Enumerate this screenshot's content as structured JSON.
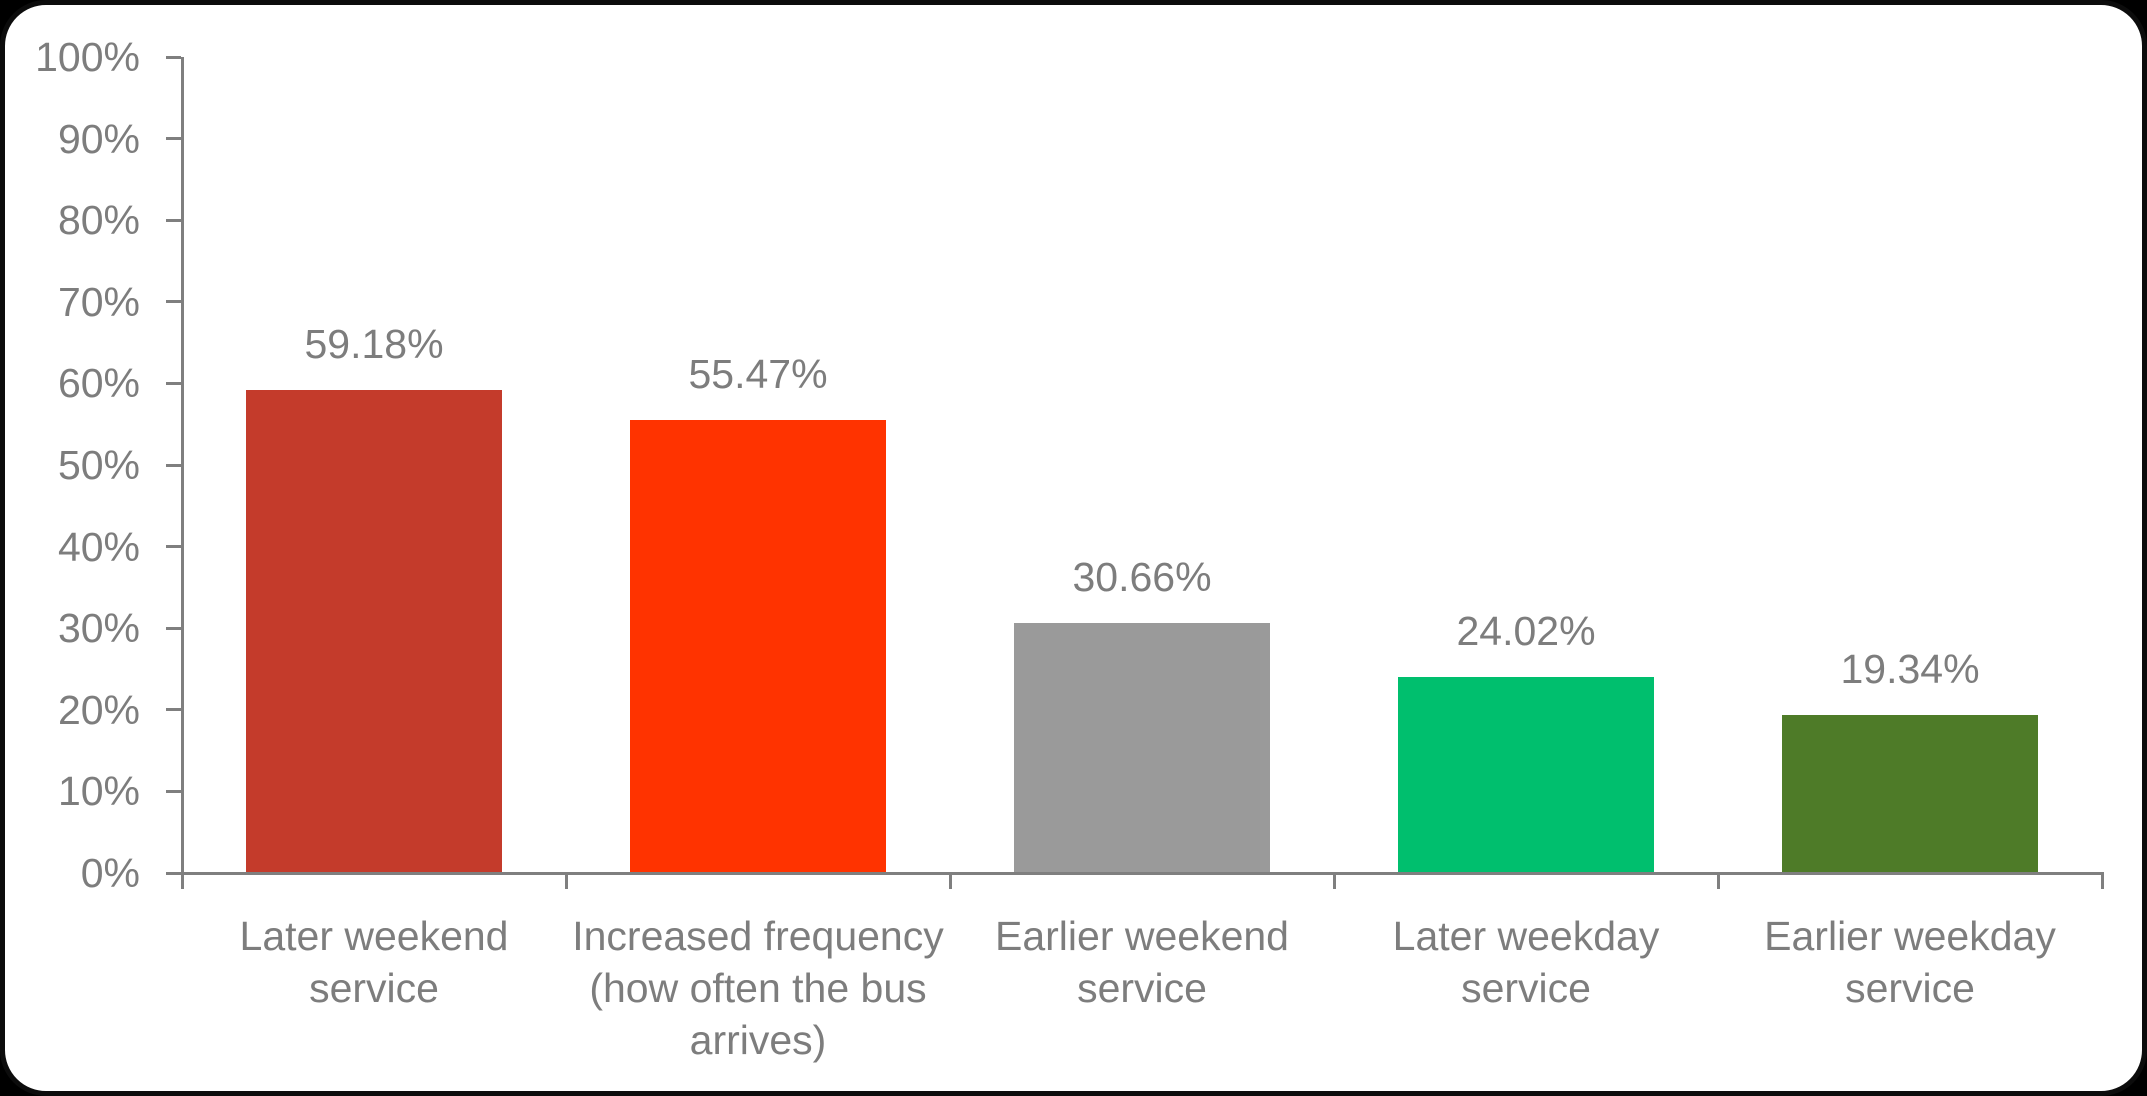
{
  "chart_data": {
    "type": "bar",
    "title": "",
    "categories": [
      "Later weekend service",
      "Increased frequency (how often the bus arrives)",
      "Earlier weekend service",
      "Later weekday service",
      "Earlier weekday service"
    ],
    "category_lines": [
      [
        "Later weekend",
        "service"
      ],
      [
        "Increased frequency",
        "(how often the bus",
        "arrives)"
      ],
      [
        "Earlier weekend",
        "service"
      ],
      [
        "Later weekday",
        "service"
      ],
      [
        "Earlier weekday",
        "service"
      ]
    ],
    "values": [
      59.18,
      55.47,
      30.66,
      24.02,
      19.34
    ],
    "value_labels": [
      "59.18%",
      "55.47%",
      "30.66%",
      "24.02%",
      "19.34%"
    ],
    "bar_colors": [
      "#c43b2b",
      "#ff3300",
      "#9a9a9a",
      "#00bf6e",
      "#4e7b28"
    ],
    "ylim": [
      0,
      100
    ],
    "ytick_step": 10,
    "ytick_labels": [
      "0%",
      "10%",
      "20%",
      "30%",
      "40%",
      "50%",
      "60%",
      "70%",
      "80%",
      "90%",
      "100%"
    ],
    "grid": false,
    "legend": false,
    "xlabel": "",
    "ylabel": "",
    "axis_color": "#7f7f7f",
    "text_color": "#7d7d7d",
    "frame_border_color": "#0c0c0c",
    "background_color": "#ffffff"
  }
}
